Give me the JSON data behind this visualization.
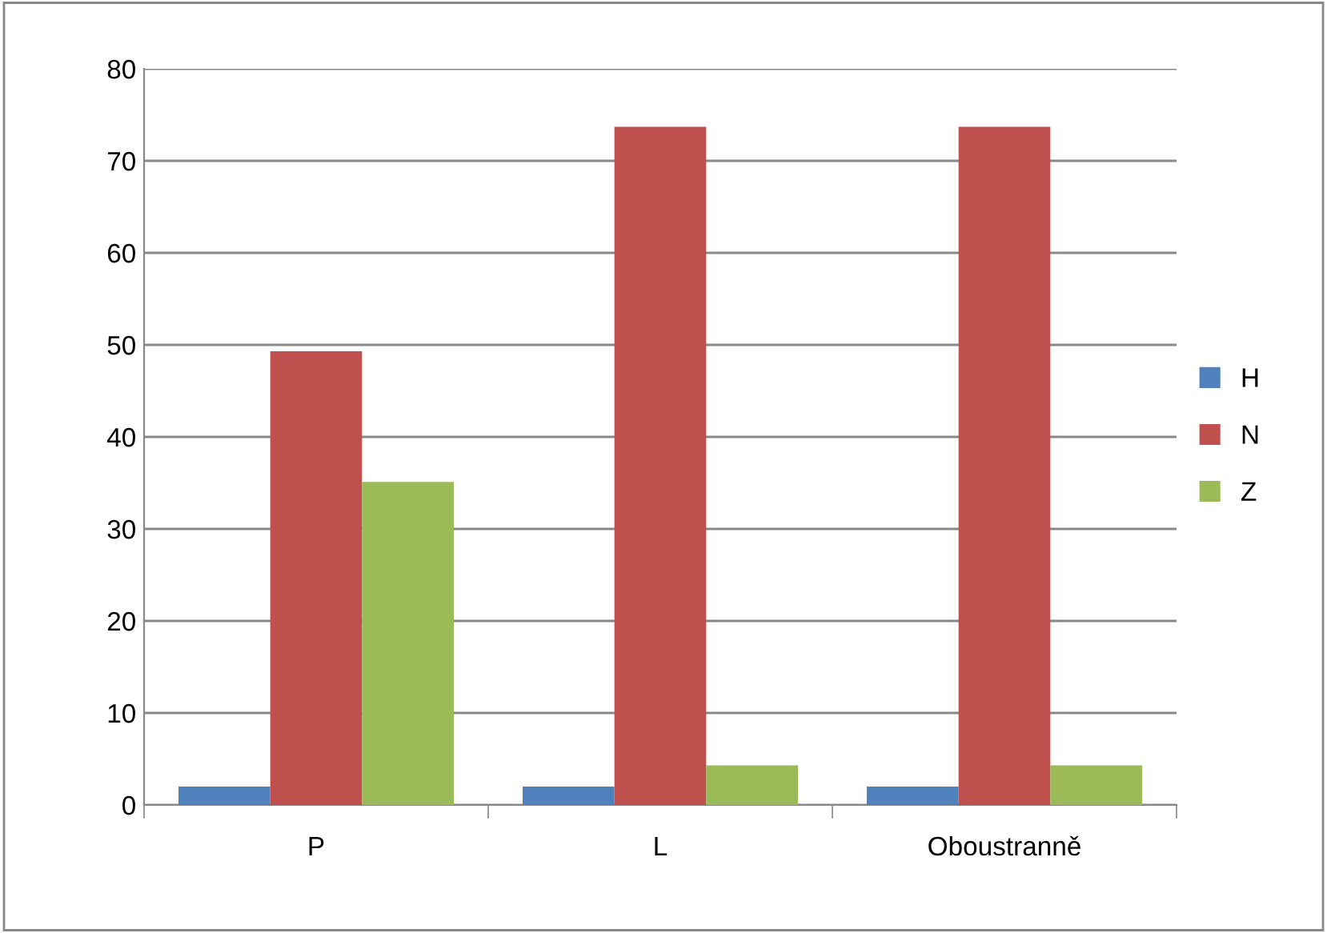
{
  "chart_data": {
    "type": "bar",
    "categories": [
      "P",
      "L",
      "Oboustranně"
    ],
    "series": [
      {
        "name": "H",
        "color": "#4f81bd",
        "values": [
          2.0,
          2.0,
          2.0
        ]
      },
      {
        "name": "N",
        "color": "#c0504d",
        "values": [
          49.3,
          73.7,
          73.7
        ]
      },
      {
        "name": "Z",
        "color": "#9bbb59",
        "values": [
          35.1,
          4.3,
          4.3
        ]
      }
    ],
    "ylim": [
      0,
      80
    ],
    "yticks": [
      0,
      10,
      20,
      30,
      40,
      50,
      60,
      70,
      80
    ],
    "grid": "y",
    "legend": "right"
  }
}
